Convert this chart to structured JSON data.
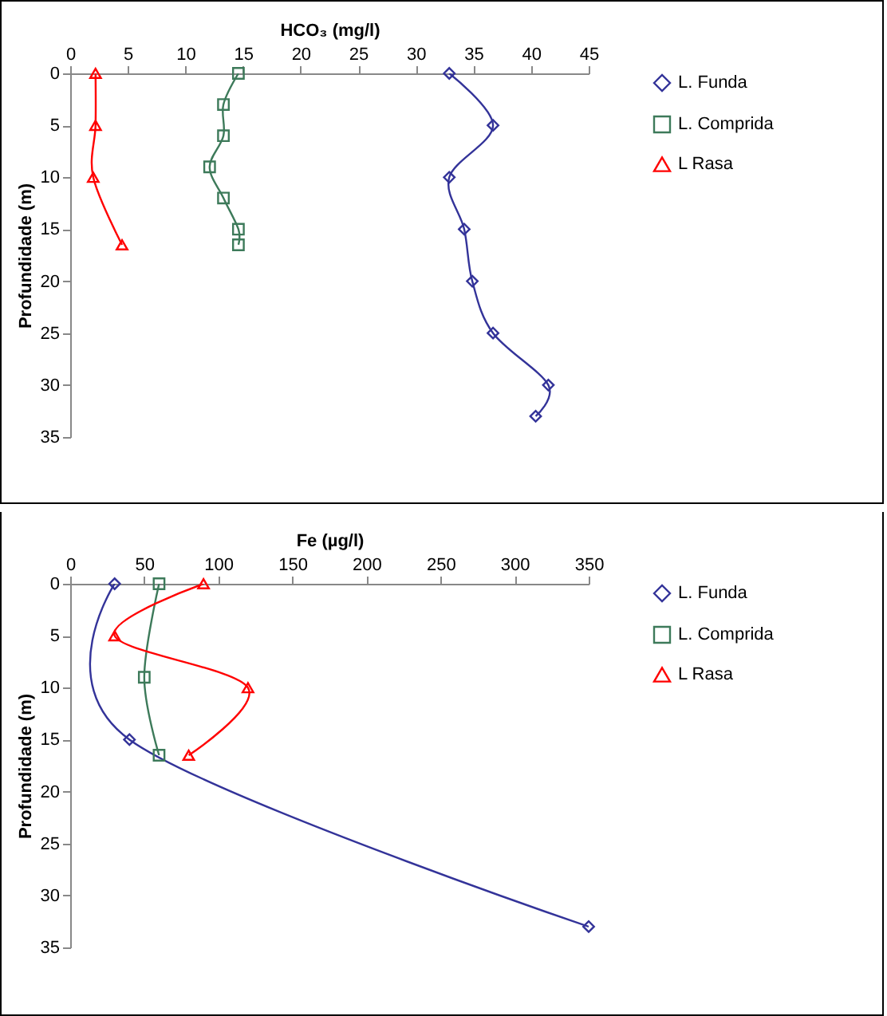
{
  "chart_data": [
    {
      "type": "line",
      "xlabel": "HCO₃ (mg/l)",
      "ylabel": "Profundidade (m)",
      "xlim": [
        0,
        45
      ],
      "xticks": [
        0,
        5,
        10,
        15,
        20,
        25,
        30,
        35,
        40,
        45
      ],
      "ylim": [
        35,
        0
      ],
      "yticks": [
        0,
        5,
        10,
        15,
        20,
        25,
        30,
        35
      ],
      "legend": "right",
      "grid": false,
      "series": [
        {
          "name": "L. Funda",
          "color": "#333399",
          "marker": "diamond",
          "x": [
            32.9,
            36.7,
            32.9,
            34.2,
            34.9,
            36.7,
            41.5,
            40.4
          ],
          "values": [
            0,
            5,
            10,
            15,
            20,
            25,
            30,
            33
          ]
        },
        {
          "name": "L. Comprida",
          "color": "#3d7a5a",
          "marker": "square",
          "x": [
            14.6,
            13.3,
            13.3,
            12.1,
            13.3,
            14.6,
            14.6
          ],
          "values": [
            0,
            3,
            6,
            9,
            12,
            15,
            16.5
          ]
        },
        {
          "name": "L Rasa",
          "color": "#ff0000",
          "marker": "triangle",
          "x": [
            2.2,
            2.2,
            2.0,
            4.5
          ],
          "values": [
            0,
            5,
            10,
            16.5
          ]
        }
      ]
    },
    {
      "type": "line",
      "xlabel": "Fe (µg/l)",
      "ylabel": "Profundidade (m)",
      "xlim": [
        0,
        350
      ],
      "xticks": [
        0,
        50,
        100,
        150,
        200,
        250,
        300,
        350
      ],
      "ylim": [
        35,
        0
      ],
      "yticks": [
        0,
        5,
        10,
        15,
        20,
        25,
        30,
        35
      ],
      "legend": "right",
      "grid": false,
      "series": [
        {
          "name": "L. Funda",
          "color": "#333399",
          "marker": "diamond",
          "x": [
            30,
            40,
            350
          ],
          "values": [
            0,
            15,
            33
          ]
        },
        {
          "name": "L. Comprida",
          "color": "#3d7a5a",
          "marker": "square",
          "x": [
            60,
            50,
            60
          ],
          "values": [
            0,
            9,
            16.5
          ]
        },
        {
          "name": "L Rasa",
          "color": "#ff0000",
          "marker": "triangle",
          "x": [
            90,
            30,
            120,
            80
          ],
          "values": [
            0,
            5,
            10,
            16.5
          ]
        }
      ]
    }
  ]
}
